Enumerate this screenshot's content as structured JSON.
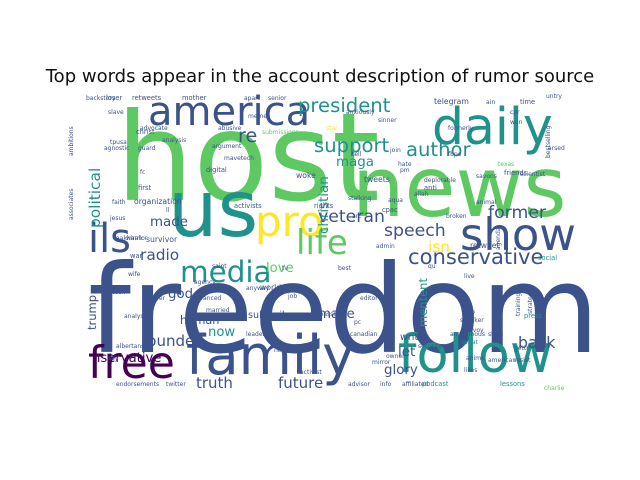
{
  "chart_data": {
    "type": "wordcloud",
    "title": "Top words appear in the account description of rumor source",
    "palette": [
      "#440154",
      "#3b528b",
      "#21918c",
      "#5ec962",
      "#fde725"
    ],
    "words": [
      {
        "text": "freedom",
        "weight": 100,
        "color": "#3b528b",
        "rotate": 0
      },
      {
        "text": "host",
        "weight": 94,
        "color": "#5ec962",
        "rotate": 0
      },
      {
        "text": "news",
        "weight": 74,
        "color": "#5ec962",
        "rotate": 0
      },
      {
        "text": "us",
        "weight": 68,
        "color": "#21918c",
        "rotate": 0
      },
      {
        "text": "family",
        "weight": 52,
        "color": "#3b528b",
        "rotate": 0
      },
      {
        "text": "follow",
        "weight": 50,
        "color": "#21918c",
        "rotate": 0
      },
      {
        "text": "daily",
        "weight": 48,
        "color": "#21918c",
        "rotate": 0
      },
      {
        "text": "show",
        "weight": 44,
        "color": "#3b528b",
        "rotate": 0
      },
      {
        "text": "free",
        "weight": 42,
        "color": "#440154",
        "rotate": 0
      },
      {
        "text": "america",
        "weight": 40,
        "color": "#3b528b",
        "rotate": 0
      },
      {
        "text": "pro",
        "weight": 40,
        "color": "#fde725",
        "rotate": 0
      },
      {
        "text": "ils",
        "weight": 38,
        "color": "#3b528b",
        "rotate": 0
      },
      {
        "text": "life",
        "weight": 34,
        "color": "#5ec962",
        "rotate": 0
      },
      {
        "text": "media",
        "weight": 30,
        "color": "#21918c",
        "rotate": 0
      },
      {
        "text": "conservative",
        "weight": 22,
        "color": "#3b528b",
        "rotate": 0
      },
      {
        "text": "president",
        "weight": 20,
        "color": "#21918c",
        "rotate": 0
      },
      {
        "text": "support",
        "weight": 20,
        "color": "#21918c",
        "rotate": 0
      },
      {
        "text": "author",
        "weight": 20,
        "color": "#21918c",
        "rotate": 0
      },
      {
        "text": "veteran",
        "weight": 18,
        "color": "#3b528b",
        "rotate": 0
      },
      {
        "text": "speech",
        "weight": 18,
        "color": "#3b528b",
        "rotate": 0
      },
      {
        "text": "former",
        "weight": 18,
        "color": "#3b528b",
        "rotate": 0
      },
      {
        "text": "truth",
        "weight": 16,
        "color": "#3b528b",
        "rotate": 0
      },
      {
        "text": "future",
        "weight": 16,
        "color": "#3b528b",
        "rotate": 0
      },
      {
        "text": "founder",
        "weight": 16,
        "color": "#3b528b",
        "rotate": 0
      },
      {
        "text": "back",
        "weight": 16,
        "color": "#3b528b",
        "rotate": 0
      },
      {
        "text": "isn",
        "weight": 16,
        "color": "#fde725",
        "rotate": 0
      },
      {
        "text": "re",
        "weight": 20,
        "color": "#3b528b",
        "rotate": 0
      },
      {
        "text": "god",
        "weight": 14,
        "color": "#3b528b",
        "rotate": 0
      },
      {
        "text": "made",
        "weight": 14,
        "color": "#3b528b",
        "rotate": 0
      },
      {
        "text": "love",
        "weight": 14,
        "color": "#5ec962",
        "rotate": 0
      },
      {
        "text": "now",
        "weight": 14,
        "color": "#21918c",
        "rotate": 0
      },
      {
        "text": "human",
        "weight": 12,
        "color": "#3b528b",
        "rotate": 0
      },
      {
        "text": "nservative",
        "weight": 14,
        "color": "#440154",
        "rotate": 0
      },
      {
        "text": "make",
        "weight": 14,
        "color": "#3b528b",
        "rotate": 0
      },
      {
        "text": "let",
        "weight": 14,
        "color": "#3b528b",
        "rotate": 0
      },
      {
        "text": "glory",
        "weight": 14,
        "color": "#3b528b",
        "rotate": 0
      },
      {
        "text": "maga",
        "weight": 14,
        "color": "#21918c",
        "rotate": 0
      },
      {
        "text": "christian",
        "weight": 14,
        "color": "#21918c",
        "rotate": -90
      },
      {
        "text": "political",
        "weight": 16,
        "color": "#21918c",
        "rotate": -90
      },
      {
        "text": "radio",
        "weight": 16,
        "color": "#3b528b",
        "rotate": 0
      },
      {
        "text": "trump",
        "weight": 12,
        "color": "#3b528b",
        "rotate": -90
      },
      {
        "text": "mentent",
        "weight": 12,
        "color": "#21918c",
        "rotate": -90
      },
      {
        "text": "subscribe",
        "weight": 10,
        "color": "#3b528b",
        "rotate": 0
      },
      {
        "text": "writer",
        "weight": 10,
        "color": "#3b528b",
        "rotate": 0
      },
      {
        "text": "organization",
        "weight": 8,
        "color": "#3b528b",
        "rotate": 0
      },
      {
        "text": "survivor",
        "weight": 8,
        "color": "#3b528b",
        "rotate": 0
      },
      {
        "text": "telegram",
        "weight": 8,
        "color": "#3b528b",
        "rotate": 0
      },
      {
        "text": "world",
        "weight": 8,
        "color": "#3b528b",
        "rotate": 0
      },
      {
        "text": "retweet",
        "weight": 8,
        "color": "#3b528b",
        "rotate": 0
      },
      {
        "text": "woke",
        "weight": 8,
        "color": "#3b528b",
        "rotate": 0
      },
      {
        "text": "tweets",
        "weight": 8,
        "color": "#3b528b",
        "rotate": 0
      },
      {
        "text": "podcast",
        "weight": 7,
        "color": "#21918c",
        "rotate": 0
      },
      {
        "text": "lessons",
        "weight": 7,
        "color": "#21918c",
        "rotate": 0
      },
      {
        "text": "press",
        "weight": 7,
        "color": "#21918c",
        "rotate": 0
      },
      {
        "text": "social",
        "weight": 7,
        "color": "#21918c",
        "rotate": 0
      },
      {
        "text": "christ",
        "weight": 7,
        "color": "#3b528b",
        "rotate": 0
      },
      {
        "text": "first",
        "weight": 7,
        "color": "#3b528b",
        "rotate": 0
      },
      {
        "text": "digital",
        "weight": 7,
        "color": "#3b528b",
        "rotate": 0
      },
      {
        "text": "activists",
        "weight": 7,
        "color": "#3b528b",
        "rotate": 0
      },
      {
        "text": "rights",
        "weight": 7,
        "color": "#3b528b",
        "rotate": 0
      },
      {
        "text": "cpac",
        "weight": 7,
        "color": "#3b528b",
        "rotate": 0
      },
      {
        "text": "anti",
        "weight": 7,
        "color": "#3b528b",
        "rotate": 0
      },
      {
        "text": "friends",
        "weight": 7,
        "color": "#3b528b",
        "rotate": 0
      },
      {
        "text": "time",
        "weight": 7,
        "color": "#3b528b",
        "rotate": 0
      },
      {
        "text": "loser",
        "weight": 7,
        "color": "#3b528b",
        "rotate": 0
      },
      {
        "text": "retweets",
        "weight": 7,
        "color": "#3b528b",
        "rotate": 0
      },
      {
        "text": "mother",
        "weight": 7,
        "color": "#3b528b",
        "rotate": 0
      },
      {
        "text": "senior",
        "weight": 6,
        "color": "#3b528b",
        "rotate": 0
      },
      {
        "text": "slave",
        "weight": 6,
        "color": "#3b528b",
        "rotate": 0
      },
      {
        "text": "analysis",
        "weight": 6,
        "color": "#3b528b",
        "rotate": 0
      },
      {
        "text": "guard",
        "weight": 6,
        "color": "#3b528b",
        "rotate": 0
      },
      {
        "text": "faith",
        "weight": 6,
        "color": "#3b528b",
        "rotate": 0
      },
      {
        "text": "jesus",
        "weight": 6,
        "color": "#3b528b",
        "rotate": 0
      },
      {
        "text": "warrior",
        "weight": 6,
        "color": "#3b528b",
        "rotate": 0
      },
      {
        "text": "war",
        "weight": 7,
        "color": "#3b528b",
        "rotate": 0
      },
      {
        "text": "wife",
        "weight": 6,
        "color": "#3b528b",
        "rotate": 0
      },
      {
        "text": "tech",
        "weight": 6,
        "color": "#3b528b",
        "rotate": 0
      },
      {
        "text": "endorsements",
        "weight": 6,
        "color": "#3b528b",
        "rotate": 0
      },
      {
        "text": "twitter",
        "weight": 6,
        "color": "#3b528b",
        "rotate": 0
      },
      {
        "text": "leader",
        "weight": 6,
        "color": "#3b528b",
        "rotate": 0
      },
      {
        "text": "married",
        "weight": 6,
        "color": "#3b528b",
        "rotate": 0
      },
      {
        "text": "lover",
        "weight": 6,
        "color": "#3b528b",
        "rotate": 0
      },
      {
        "text": "nous",
        "weight": 6,
        "color": "#3b528b",
        "rotate": 0
      },
      {
        "text": "canadian",
        "weight": 6,
        "color": "#3b528b",
        "rotate": 0
      },
      {
        "text": "advisor",
        "weight": 6,
        "color": "#3b528b",
        "rotate": 0
      },
      {
        "text": "info",
        "weight": 6,
        "color": "#3b528b",
        "rotate": 0
      },
      {
        "text": "affiliated",
        "weight": 6,
        "color": "#3b528b",
        "rotate": 0
      },
      {
        "text": "security",
        "weight": 6,
        "color": "#3b528b",
        "rotate": 0
      },
      {
        "text": "speaker",
        "weight": 6,
        "color": "#3b528b",
        "rotate": 0
      },
      {
        "text": "convoy",
        "weight": 6,
        "color": "#3b528b",
        "rotate": 0
      },
      {
        "text": "great",
        "weight": 6,
        "color": "#21918c",
        "rotate": 0
      },
      {
        "text": "anonymous",
        "weight": 6,
        "color": "#3b528b",
        "rotate": 0
      },
      {
        "text": "state",
        "weight": 6,
        "color": "#3b528b",
        "rotate": 0
      },
      {
        "text": "resist",
        "weight": 6,
        "color": "#3b528b",
        "rotate": 0
      },
      {
        "text": "gettr",
        "weight": 6,
        "color": "#3b528b",
        "rotate": 0
      },
      {
        "text": "likes",
        "weight": 6,
        "color": "#3b528b",
        "rotate": 0
      },
      {
        "text": "live",
        "weight": 6,
        "color": "#3b528b",
        "rotate": 0
      },
      {
        "text": "stop",
        "weight": 6,
        "color": "#3b528b",
        "rotate": 0
      },
      {
        "text": "broken",
        "weight": 6,
        "color": "#3b528b",
        "rotate": 0
      },
      {
        "text": "hate",
        "weight": 6,
        "color": "#3b528b",
        "rotate": 0
      },
      {
        "text": "join",
        "weight": 6,
        "color": "#3b528b",
        "rotate": 0
      },
      {
        "text": "tell",
        "weight": 6,
        "color": "#3b528b",
        "rotate": 0
      },
      {
        "text": "formerly",
        "weight": 6,
        "color": "#3b528b",
        "rotate": 0
      },
      {
        "text": "stalking",
        "weight": 6,
        "color": "#3b528b",
        "rotate": 0
      },
      {
        "text": "fbpe",
        "weight": 6,
        "color": "#3b528b",
        "rotate": 0
      },
      {
        "text": "won",
        "weight": 6,
        "color": "#3b528b",
        "rotate": 0
      },
      {
        "text": "ain",
        "weight": 6,
        "color": "#3b528b",
        "rotate": 0
      },
      {
        "text": "cpr",
        "weight": 6,
        "color": "#3b528b",
        "rotate": 0
      },
      {
        "text": "texas",
        "weight": 6,
        "color": "#5ec962",
        "rotate": 0
      },
      {
        "text": "untry",
        "weight": 6,
        "color": "#3b528b",
        "rotate": 0
      },
      {
        "text": "arsed",
        "weight": 6,
        "color": "#3b528b",
        "rotate": 0
      },
      {
        "text": "bestselling",
        "weight": 6,
        "color": "#3b528b",
        "rotate": -90
      },
      {
        "text": "strategic",
        "weight": 6,
        "color": "#3b528b",
        "rotate": -90
      },
      {
        "text": "training",
        "weight": 6,
        "color": "#3b528b",
        "rotate": -90
      },
      {
        "text": "agenda",
        "weight": 6,
        "color": "#3b528b",
        "rotate": -90
      },
      {
        "text": "job",
        "weight": 6,
        "color": "#3b528b",
        "rotate": 0
      },
      {
        "text": "editor",
        "weight": 6,
        "color": "#3b528b",
        "rotate": 0
      },
      {
        "text": "tv",
        "weight": 6,
        "color": "#3b528b",
        "rotate": 0
      },
      {
        "text": "pc",
        "weight": 6,
        "color": "#3b528b",
        "rotate": 0
      },
      {
        "text": "meme",
        "weight": 6,
        "color": "#3b528b",
        "rotate": 0
      },
      {
        "text": "qu",
        "weight": 6,
        "color": "#3b528b",
        "rotate": 0
      },
      {
        "text": "ll",
        "weight": 6,
        "color": "#3b528b",
        "rotate": 0
      },
      {
        "text": "fc",
        "weight": 6,
        "color": "#3b528b",
        "rotate": 0
      },
      {
        "text": "charlie",
        "weight": 6,
        "color": "#5ec962",
        "rotate": 0
      },
      {
        "text": "best",
        "weight": 6,
        "color": "#3b528b",
        "rotate": 0
      },
      {
        "text": "owner",
        "weight": 6,
        "color": "#3b528b",
        "rotate": 0
      },
      {
        "text": "mirror",
        "weight": 5,
        "color": "#3b528b",
        "rotate": 0
      },
      {
        "text": "anime",
        "weight": 5,
        "color": "#3b528b",
        "rotate": 0
      },
      {
        "text": "activist",
        "weight": 5,
        "color": "#3b528b",
        "rotate": 0
      },
      {
        "text": "say",
        "weight": 5,
        "color": "#3b528b",
        "rotate": 0
      },
      {
        "text": "submissions",
        "weight": 6,
        "color": "#5ec962",
        "rotate": 0
      },
      {
        "text": "star",
        "weight": 6,
        "color": "#fde725",
        "rotate": 0
      },
      {
        "text": "arc",
        "weight": 6,
        "color": "#3b528b",
        "rotate": 0
      },
      {
        "text": "pm",
        "weight": 6,
        "color": "#3b528b",
        "rotate": 0
      },
      {
        "text": "apart",
        "weight": 5,
        "color": "#3b528b",
        "rotate": 0
      },
      {
        "text": "abusive",
        "weight": 5,
        "color": "#3b528b",
        "rotate": 0
      },
      {
        "text": "advocate",
        "weight": 5,
        "color": "#3b528b",
        "rotate": 0
      },
      {
        "text": "mavetech",
        "weight": 5,
        "color": "#3b528b",
        "rotate": 0
      },
      {
        "text": "tpusa",
        "weight": 5,
        "color": "#3b528b",
        "rotate": 0
      },
      {
        "text": "agnostic",
        "weight": 5,
        "color": "#3b528b",
        "rotate": 0
      },
      {
        "text": "aakhirah",
        "weight": 5,
        "color": "#3b528b",
        "rotate": 0
      },
      {
        "text": "albertans",
        "weight": 5,
        "color": "#3b528b",
        "rotate": 0
      },
      {
        "text": "admin",
        "weight": 5,
        "color": "#3b528b",
        "rotate": 0
      },
      {
        "text": "aqua",
        "weight": 5,
        "color": "#3b528b",
        "rotate": 0
      },
      {
        "text": "deplorable",
        "weight": 5,
        "color": "#3b528b",
        "rotate": 0
      },
      {
        "text": "allah",
        "weight": 5,
        "color": "#3b528b",
        "rotate": 0
      },
      {
        "text": "anxiously",
        "weight": 5,
        "color": "#3b528b",
        "rotate": 0
      },
      {
        "text": "sinner",
        "weight": 5,
        "color": "#3b528b",
        "rotate": 0
      },
      {
        "text": "ambassador",
        "weight": 5,
        "color": "#3b528b",
        "rotate": 0
      },
      {
        "text": "american",
        "weight": 5,
        "color": "#3b528b",
        "rotate": 0
      },
      {
        "text": "argument",
        "weight": 5,
        "color": "#3b528b",
        "rotate": 0
      },
      {
        "text": "agency",
        "weight": 5,
        "color": "#3b528b",
        "rotate": 0
      },
      {
        "text": "advanced",
        "weight": 5,
        "color": "#3b528b",
        "rotate": 0
      },
      {
        "text": "analyst",
        "weight": 5,
        "color": "#3b528b",
        "rotate": 0
      },
      {
        "text": "animal",
        "weight": 5,
        "color": "#3b528b",
        "rotate": 0
      },
      {
        "text": "saint",
        "weight": 5,
        "color": "#3b528b",
        "rotate": 0
      },
      {
        "text": "anyway",
        "weight": 5,
        "color": "#3b528b",
        "rotate": 0
      },
      {
        "text": "savons",
        "weight": 5,
        "color": "#3b528b",
        "rotate": 0
      },
      {
        "text": "scientist",
        "weight": 5,
        "color": "#3b528b",
        "rotate": 0
      },
      {
        "text": "ambitions",
        "weight": 5,
        "color": "#3b528b",
        "rotate": -90
      },
      {
        "text": "associates",
        "weight": 5,
        "color": "#3b528b",
        "rotate": -90
      },
      {
        "text": "backstory",
        "weight": 5,
        "color": "#3b528b",
        "rotate": 0
      }
    ]
  }
}
